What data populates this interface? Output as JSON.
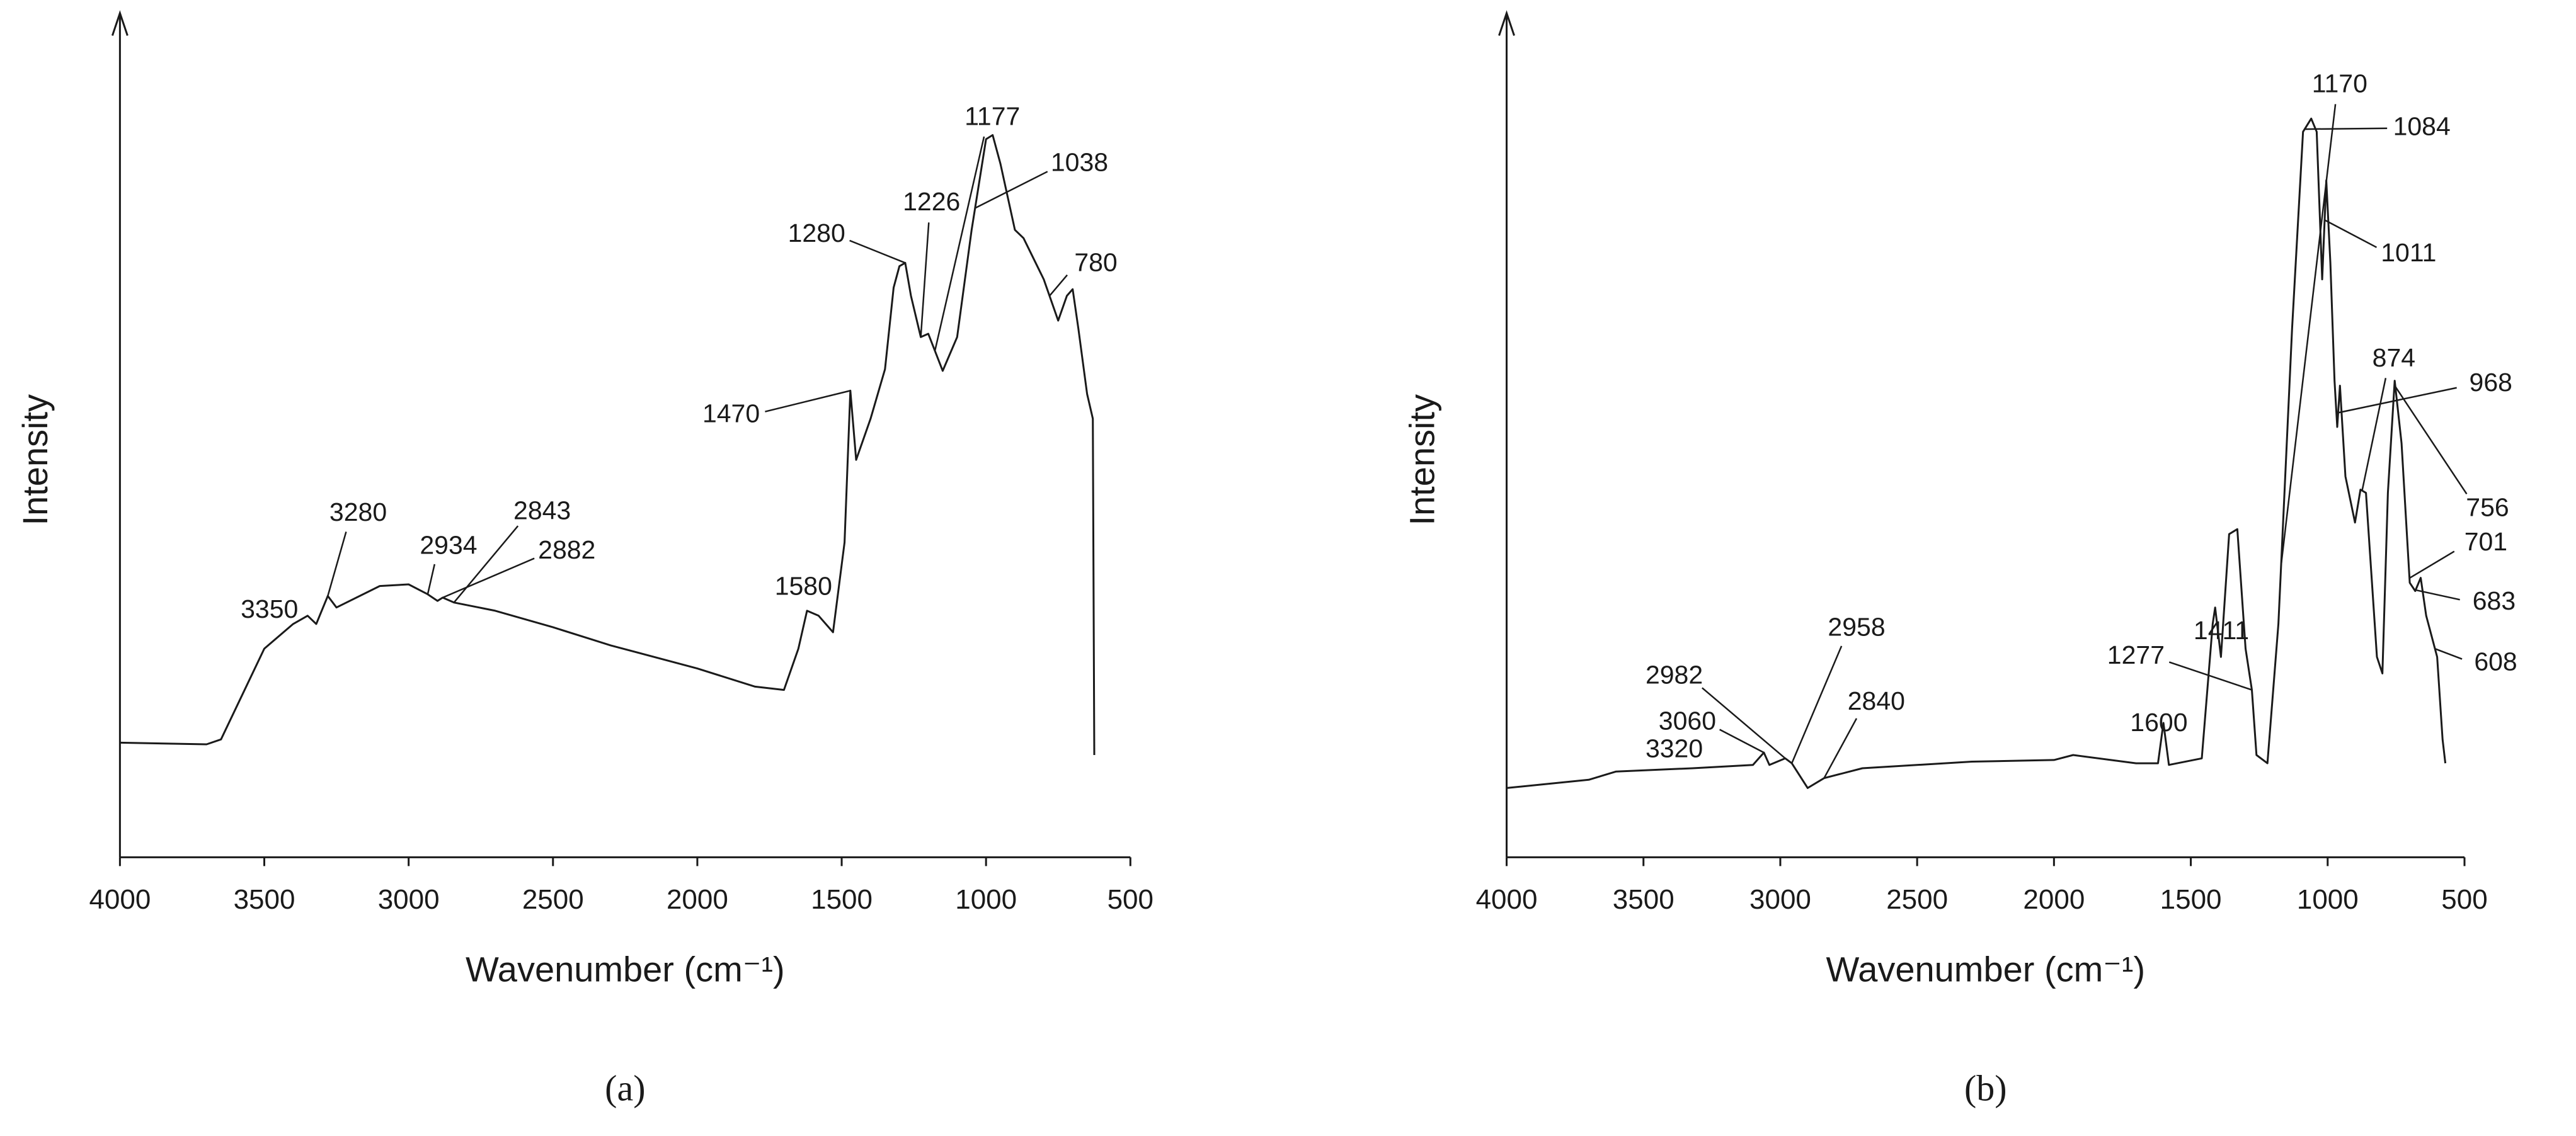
{
  "chart_data": [
    {
      "type": "line",
      "label": "(a)",
      "xlabel": "Wavenumber (cm⁻¹)",
      "ylabel": "Intensity",
      "color": "#1a1a1a",
      "xlim": [
        4000,
        500
      ],
      "xticks": [
        4000,
        3500,
        3000,
        2500,
        2000,
        1500,
        1000,
        500
      ],
      "ylim": [
        0,
        100
      ],
      "x": [
        4000,
        3700,
        3650,
        3500,
        3400,
        3350,
        3320,
        3280,
        3250,
        3100,
        3000,
        2934,
        2900,
        2882,
        2843,
        2700,
        2500,
        2300,
        2000,
        1800,
        1700,
        1650,
        1620,
        1580,
        1530,
        1490,
        1470,
        1450,
        1400,
        1350,
        1320,
        1300,
        1280,
        1260,
        1226,
        1200,
        1150,
        1100,
        1050,
        1000,
        977,
        950,
        900,
        870,
        800,
        750,
        720,
        700,
        680,
        650,
        630,
        625
      ],
      "values": [
        13.9,
        13.7,
        14.3,
        25.3,
        28.3,
        29.3,
        28.3,
        31.7,
        30.3,
        32.9,
        33.1,
        31.9,
        31.1,
        31.5,
        30.9,
        29.9,
        27.9,
        25.7,
        22.9,
        20.7,
        20.3,
        25.3,
        29.9,
        29.3,
        27.3,
        38.2,
        56.6,
        48.2,
        53.2,
        59.2,
        69.1,
        71.7,
        72.1,
        68.1,
        63.1,
        63.5,
        59.0,
        63.1,
        76.1,
        87.1,
        87.6,
        84.1,
        76.1,
        75.1,
        70.1,
        65.1,
        68.1,
        68.9,
        64.1,
        56.2,
        53.2,
        12.4
      ],
      "peaks": [
        3350,
        3280,
        2934,
        2843,
        2882,
        1580,
        1470,
        1280,
        1226,
        1177,
        1038,
        780
      ]
    },
    {
      "type": "line",
      "label": "(b)",
      "xlabel": "Wavenumber (cm⁻¹)",
      "ylabel": "Intensity",
      "color": "#1a1a1a",
      "xlim": [
        4000,
        500
      ],
      "xticks": [
        4000,
        3500,
        3000,
        2500,
        2000,
        1500,
        1000,
        500
      ],
      "ylim": [
        0,
        100
      ],
      "x": [
        4000,
        3700,
        3600,
        3320,
        3100,
        3060,
        3040,
        2982,
        2958,
        2900,
        2840,
        2700,
        2300,
        2000,
        1930,
        1700,
        1620,
        1600,
        1580,
        1460,
        1420,
        1411,
        1390,
        1360,
        1330,
        1300,
        1277,
        1260,
        1220,
        1180,
        1130,
        1090,
        1060,
        1040,
        1020,
        1005,
        990,
        975,
        965,
        955,
        935,
        900,
        880,
        860,
        820,
        800,
        780,
        755,
        730,
        700,
        680,
        660,
        640,
        600,
        580,
        570
      ],
      "values": [
        8.4,
        9.4,
        10.4,
        10.8,
        11.2,
        12.7,
        11.2,
        12.0,
        11.4,
        8.4,
        9.6,
        10.8,
        11.6,
        11.8,
        12.4,
        11.4,
        11.4,
        16.3,
        11.2,
        12.0,
        28.3,
        30.3,
        24.3,
        39.2,
        39.8,
        25.3,
        20.3,
        12.4,
        11.4,
        28.3,
        64.1,
        88.0,
        89.6,
        88.0,
        70.1,
        82.1,
        72.1,
        57.8,
        52.2,
        57.2,
        46.2,
        40.6,
        44.6,
        44.2,
        24.3,
        22.3,
        44.2,
        57.8,
        50.2,
        33.3,
        32.3,
        33.9,
        29.3,
        24.3,
        14.3,
        11.4
      ],
      "peaks": [
        1170,
        1084,
        1011,
        874,
        968,
        756,
        701,
        683,
        608,
        1411,
        1277,
        1600,
        3320,
        3060,
        2982,
        2958,
        2840
      ]
    }
  ]
}
